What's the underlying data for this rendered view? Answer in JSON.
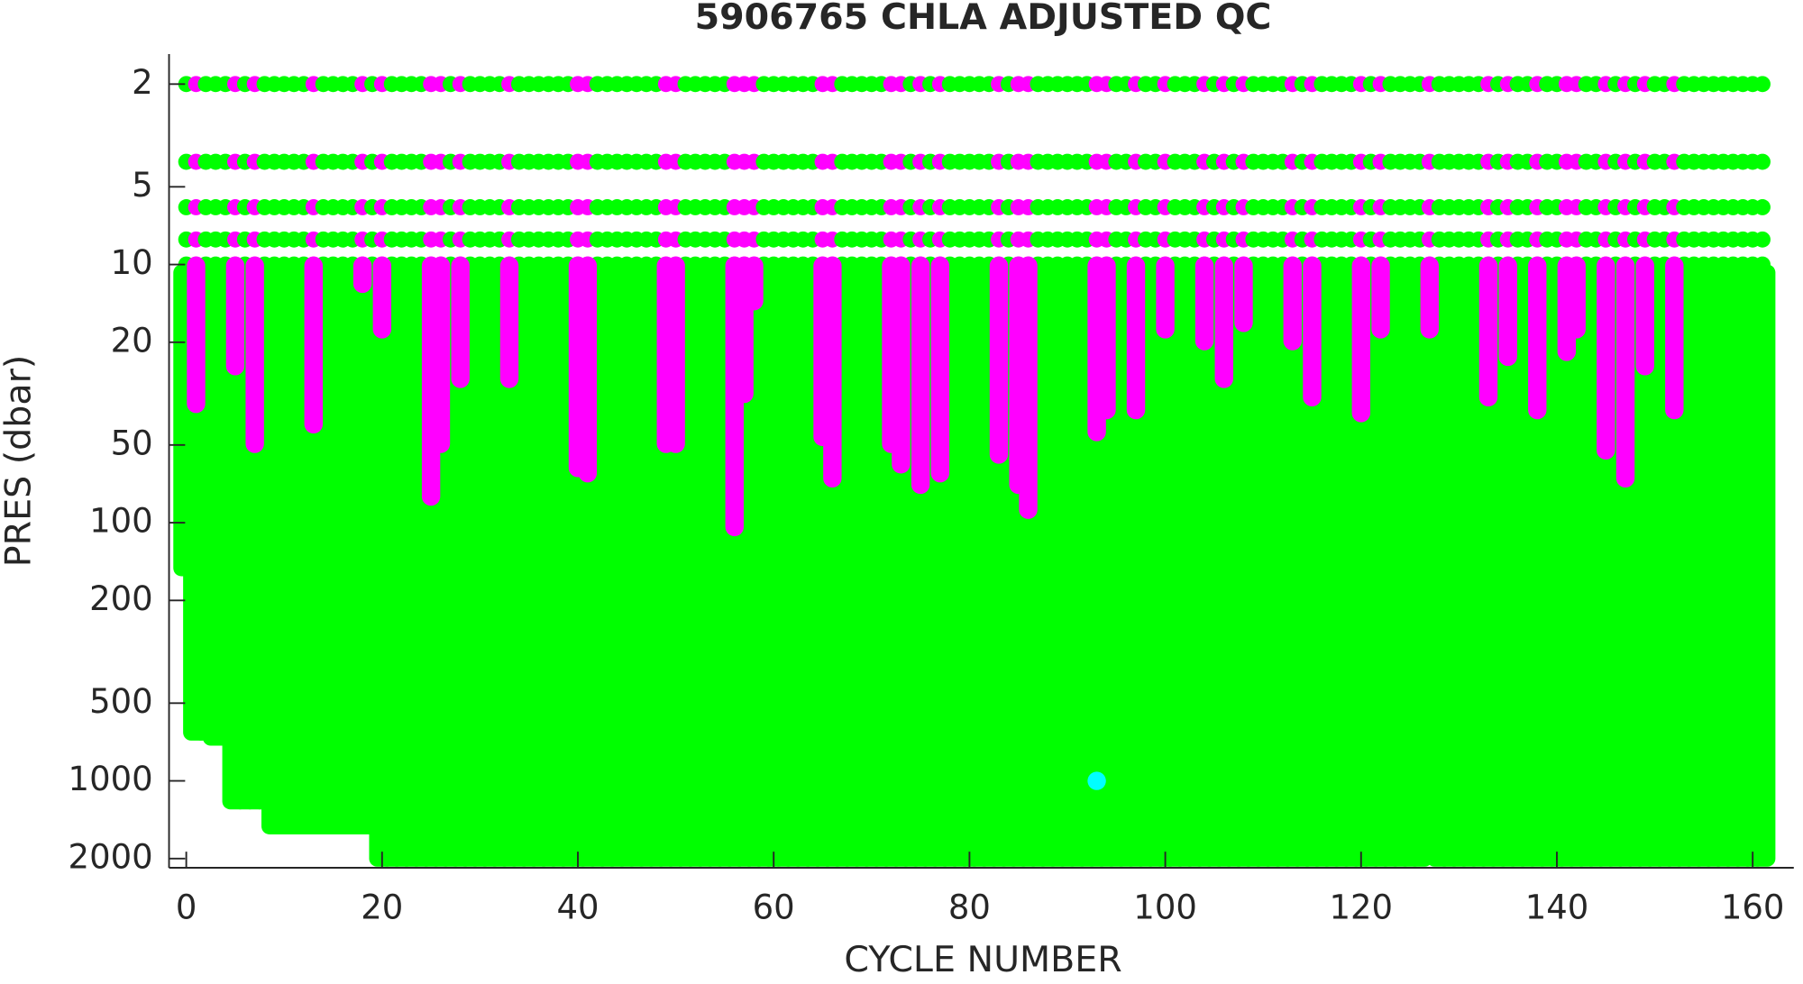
{
  "chart_data": {
    "type": "scatter",
    "title": "5906765  CHLA ADJUSTED QC",
    "xlabel": "CYCLE NUMBER",
    "ylabel": "PRES (dbar)",
    "xlim": [
      -1.76,
      164.2
    ],
    "xticks": [
      0,
      20,
      40,
      60,
      80,
      100,
      120,
      140,
      160
    ],
    "ylim": [
      1.53,
      2170
    ],
    "yticks": [
      2,
      5,
      10,
      20,
      50,
      100,
      200,
      500,
      1000,
      2000
    ],
    "log_y": true,
    "y_reversed": true,
    "surface_levels": [
      2,
      4,
      6,
      8,
      10
    ],
    "series": [
      {
        "color": "#00ff00",
        "x": [
          0,
          1,
          2,
          3,
          4,
          5,
          6,
          7,
          8,
          9,
          10,
          11,
          12,
          13,
          14,
          15,
          16,
          17,
          18,
          19,
          20,
          21,
          22,
          23,
          24,
          25,
          26,
          27,
          28,
          29,
          30,
          31,
          32,
          33,
          34,
          35,
          36,
          37,
          38,
          39,
          40,
          41,
          42,
          43,
          44,
          45,
          46,
          47,
          48,
          49,
          50,
          51,
          52,
          53,
          54,
          55,
          56,
          57,
          58,
          59,
          60,
          61,
          62,
          63,
          64,
          65,
          66,
          67,
          68,
          69,
          70,
          71,
          72,
          73,
          74,
          75,
          76,
          77,
          78,
          79,
          80,
          81,
          82,
          83,
          84,
          85,
          86,
          87,
          88,
          89,
          90,
          91,
          92,
          93,
          94,
          95,
          96,
          97,
          98,
          99,
          100,
          101,
          102,
          103,
          104,
          105,
          106,
          107,
          108,
          109,
          110,
          111,
          112,
          113,
          114,
          115,
          116,
          117,
          118,
          119,
          120,
          121,
          122,
          123,
          124,
          125,
          126,
          127,
          128,
          129,
          130,
          131,
          132,
          133,
          134,
          135,
          136,
          137,
          138,
          139,
          140,
          141,
          142,
          143,
          144,
          145,
          146,
          147,
          148,
          149,
          150,
          151,
          152,
          153,
          154,
          155,
          156,
          157,
          158,
          159,
          160,
          161
        ],
        "values": [
          150,
          650,
          650,
          680,
          680,
          1200,
          1200,
          1200,
          1200,
          1500,
          1500,
          1500,
          1500,
          1500,
          1500,
          1500,
          1500,
          1500,
          1500,
          1500,
          2000,
          2000,
          2000,
          2000,
          2000,
          2000,
          2000,
          2000,
          2000,
          2000,
          2000,
          2000,
          2000,
          2000,
          2000,
          2000,
          2000,
          2000,
          2000,
          2000,
          2000,
          2000,
          2000,
          2000,
          2000,
          2000,
          2000,
          2000,
          2000,
          2000,
          2000,
          2000,
          2000,
          2000,
          2000,
          2000,
          2000,
          2000,
          2000,
          2000,
          2000,
          2000,
          2000,
          2000,
          2000,
          2000,
          2000,
          2000,
          2000,
          2000,
          2000,
          2000,
          2000,
          2000,
          2000,
          2000,
          2000,
          2000,
          2000,
          2000,
          2000,
          2000,
          2000,
          2000,
          2000,
          2000,
          2000,
          2000,
          2000,
          2000,
          2000,
          2000,
          2000,
          2000,
          2000,
          2000,
          2000,
          2000,
          2000,
          2000,
          2000,
          2000,
          2000,
          2000,
          2000,
          2000,
          2000,
          2000,
          2000,
          2000,
          2000,
          2000,
          2000,
          2000,
          2000,
          2000,
          2000,
          2000,
          2000,
          2000,
          2000,
          2000,
          2000,
          2000,
          2000,
          2000,
          2000,
          1400,
          2000,
          2000,
          2000,
          2000,
          2000,
          2000,
          2000,
          2000,
          2000,
          2000,
          2000,
          2000,
          2000,
          2000,
          2000,
          2000,
          2000,
          2000,
          2000,
          2000,
          2000,
          2000,
          2000,
          2000,
          2000,
          2000,
          2000,
          2000,
          2000,
          2000,
          2000,
          2000,
          2000,
          2000
        ]
      },
      {
        "color": "#ff00ff",
        "x": [
          1,
          5,
          7,
          13,
          18,
          20,
          25,
          26,
          28,
          33,
          40,
          41,
          49,
          50,
          56,
          57,
          58,
          65,
          66,
          72,
          73,
          75,
          77,
          83,
          85,
          86,
          93,
          94,
          97,
          100,
          104,
          106,
          108,
          113,
          115,
          120,
          122,
          127,
          133,
          135,
          138,
          141,
          142,
          145,
          147,
          149,
          152
        ],
        "values": [
          35,
          25,
          50,
          42,
          12,
          18,
          80,
          50,
          28,
          28,
          62,
          65,
          50,
          50,
          105,
          32,
          14,
          47,
          68,
          50,
          60,
          72,
          65,
          55,
          72,
          90,
          45,
          37,
          37,
          18,
          20,
          28,
          17,
          20,
          33,
          38,
          18,
          18,
          33,
          23,
          37,
          22,
          18,
          53,
          68,
          25,
          37
        ]
      },
      {
        "color": "#00ffff",
        "x": [
          93
        ],
        "values": [
          1000
        ]
      }
    ]
  }
}
